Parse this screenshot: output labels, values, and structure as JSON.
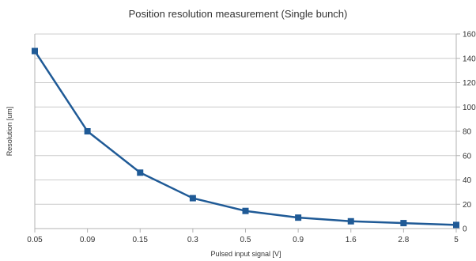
{
  "chart_data": {
    "type": "line",
    "title": "Position resolution measurement (Single bunch)",
    "xlabel": "Pulsed input signal [V]",
    "ylabel": "Resolution [um]",
    "categories": [
      "0.05",
      "0.09",
      "0.15",
      "0.3",
      "0.5",
      "0.9",
      "1.6",
      "2.8",
      "5"
    ],
    "values": [
      146,
      80,
      46,
      25,
      14.5,
      9,
      6,
      4.5,
      3
    ],
    "ylim": [
      0,
      160
    ],
    "yticks": [
      0,
      20,
      40,
      60,
      80,
      100,
      120,
      140,
      160
    ],
    "y_axis_side": "right",
    "grid": true,
    "legend": "none",
    "series_color": "#1f5a96",
    "marker": "square"
  }
}
